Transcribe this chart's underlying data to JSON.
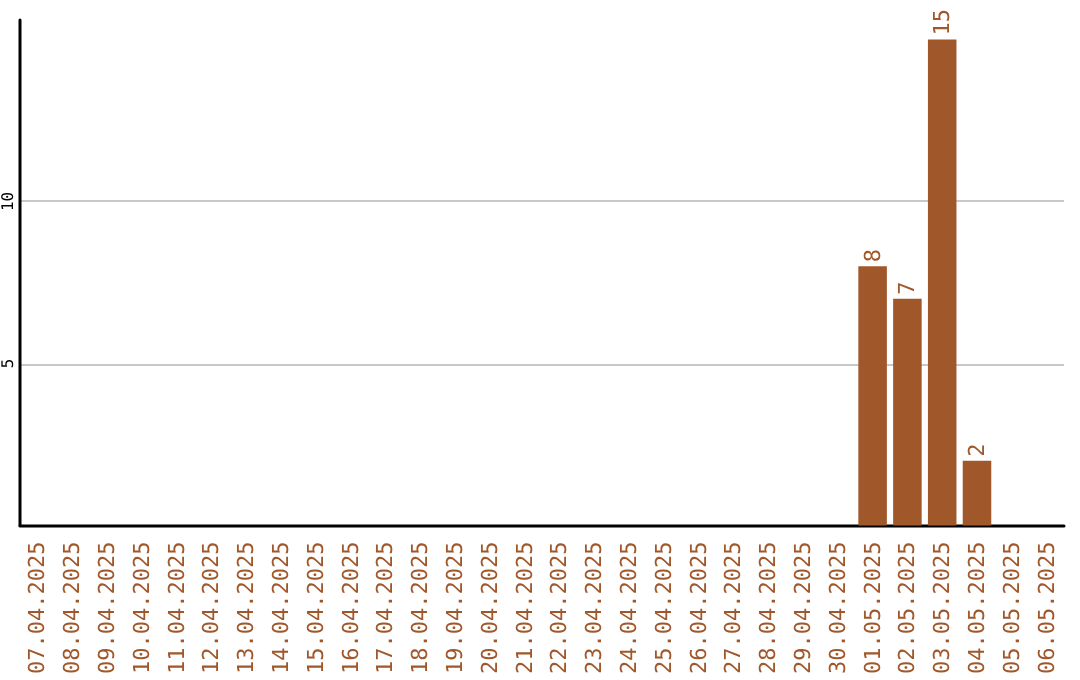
{
  "chart_data": {
    "type": "bar",
    "categories": [
      "07.04.2025",
      "08.04.2025",
      "09.04.2025",
      "10.04.2025",
      "11.04.2025",
      "12.04.2025",
      "13.04.2025",
      "14.04.2025",
      "15.04.2025",
      "16.04.2025",
      "17.04.2025",
      "18.04.2025",
      "19.04.2025",
      "20.04.2025",
      "21.04.2025",
      "22.04.2025",
      "23.04.2025",
      "24.04.2025",
      "25.04.2025",
      "26.04.2025",
      "27.04.2025",
      "28.04.2025",
      "29.04.2025",
      "30.04.2025",
      "01.05.2025",
      "02.05.2025",
      "03.05.2025",
      "04.05.2025",
      "05.05.2025",
      "06.05.2025"
    ],
    "values": [
      null,
      null,
      null,
      null,
      null,
      null,
      null,
      null,
      null,
      null,
      null,
      null,
      null,
      null,
      null,
      null,
      null,
      null,
      null,
      null,
      null,
      null,
      null,
      null,
      8,
      7,
      15,
      2,
      null,
      null
    ],
    "color": "#a0572a",
    "ylim": [
      0,
      15.6
    ],
    "yticks": [
      5,
      10
    ],
    "grid": "y",
    "data_labels": true
  }
}
